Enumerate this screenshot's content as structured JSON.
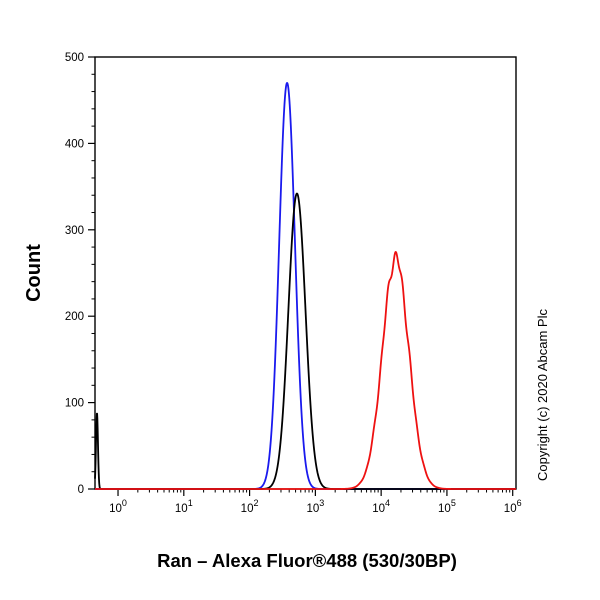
{
  "chart": {
    "title": "Ran – Alexa Fluor®488 (530/30BP)",
    "ylabel": "Count",
    "copyright": "Copyright (c) 2020 Abcam Plc"
  },
  "chart_data": {
    "type": "line",
    "subtype": "flow-cytometry-histogram",
    "x_scale": "log10",
    "xlim_log": [
      -0.35,
      6.05
    ],
    "ylim": [
      0,
      500
    ],
    "yticks": [
      0,
      100,
      200,
      300,
      400,
      500
    ],
    "y_minor_step": 20,
    "xtick_exponents": [
      0,
      1,
      2,
      3,
      4,
      5,
      6
    ],
    "xtick_base": "10",
    "grid": false,
    "legend": "none",
    "frame": true,
    "series": [
      {
        "name": "blue-curve",
        "color": "#1a1aee",
        "peak_log_x": 2.57,
        "approx_peak_x": 370,
        "peak_count": 470,
        "sigma_log": 0.12,
        "noise": 0
      },
      {
        "name": "black-curve",
        "color": "#000000",
        "peak_log_x": 2.72,
        "approx_peak_x": 525,
        "peak_count": 342,
        "sigma_log": 0.13,
        "noise": 0,
        "edge_spike_height": 88
      },
      {
        "name": "red-curve",
        "color": "#ee1111",
        "peak_log_x": 4.22,
        "approx_peak_x": 16600,
        "peak_count": 268,
        "sigma_log": 0.2,
        "noise": 0.022
      }
    ]
  }
}
